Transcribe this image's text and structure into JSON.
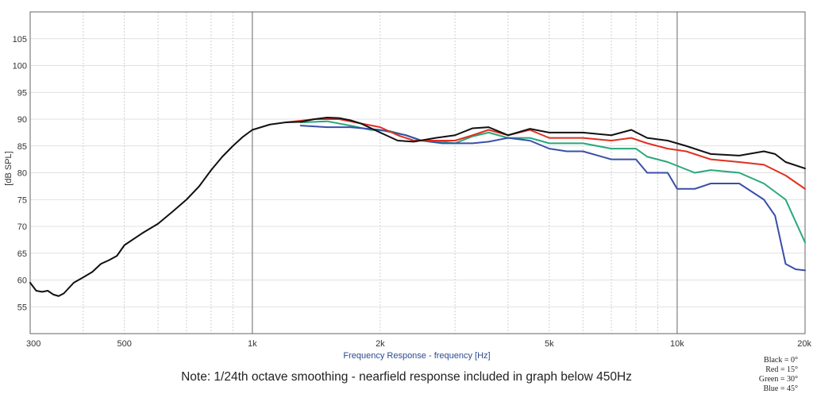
{
  "chart_data": {
    "type": "line",
    "x_scale": "log",
    "xlim": [
      300,
      20000
    ],
    "ylim": [
      50,
      110
    ],
    "grid": true,
    "xlabel": "Frequency Response - frequency [Hz]",
    "ylabel": "[dB SPL]",
    "x_ticks": [
      {
        "value": 300,
        "label": "300"
      },
      {
        "value": 500,
        "label": "500"
      },
      {
        "value": 1000,
        "label": "1k"
      },
      {
        "value": 2000,
        "label": "2k"
      },
      {
        "value": 5000,
        "label": "5k"
      },
      {
        "value": 10000,
        "label": "10k"
      },
      {
        "value": 20000,
        "label": "20k"
      }
    ],
    "y_ticks": [
      55,
      60,
      65,
      70,
      75,
      80,
      85,
      90,
      95,
      100,
      105
    ],
    "note": "Note: 1/24th octave smoothing - nearfield response included in graph below 450Hz",
    "legend_position": "bottom-right",
    "legend": [
      {
        "label": "Black =  0°",
        "color": "#111111"
      },
      {
        "label": "Red =  15°",
        "color": "#e03020"
      },
      {
        "label": "Green =  30°",
        "color": "#27a87a"
      },
      {
        "label": "Blue =  45°",
        "color": "#3a4fa8"
      }
    ],
    "series": [
      {
        "color": "#27a87a",
        "points": [
          [
            1300,
            89.4
          ],
          [
            1500,
            89.6
          ],
          [
            1700,
            88.8
          ],
          [
            1900,
            88.0
          ],
          [
            2100,
            87.8
          ],
          [
            2300,
            87.0
          ],
          [
            2500,
            86.0
          ],
          [
            2800,
            85.8
          ],
          [
            3000,
            85.5
          ],
          [
            3300,
            86.8
          ],
          [
            3600,
            87.5
          ],
          [
            4000,
            86.5
          ],
          [
            4500,
            86.5
          ],
          [
            5000,
            85.5
          ],
          [
            6000,
            85.5
          ],
          [
            7000,
            84.5
          ],
          [
            8000,
            84.5
          ],
          [
            8500,
            83.0
          ],
          [
            9500,
            82.0
          ],
          [
            11000,
            80.0
          ],
          [
            12000,
            80.5
          ],
          [
            14000,
            80.0
          ],
          [
            16000,
            78.0
          ],
          [
            18000,
            75.0
          ],
          [
            20000,
            67.0
          ]
        ]
      },
      {
        "color": "#3a4fa8",
        "points": [
          [
            1300,
            88.8
          ],
          [
            1500,
            88.5
          ],
          [
            1700,
            88.5
          ],
          [
            2000,
            88.0
          ],
          [
            2300,
            87.0
          ],
          [
            2500,
            86.0
          ],
          [
            2800,
            85.5
          ],
          [
            3000,
            85.5
          ],
          [
            3300,
            85.5
          ],
          [
            3600,
            85.8
          ],
          [
            4000,
            86.5
          ],
          [
            4500,
            86.0
          ],
          [
            5000,
            84.5
          ],
          [
            5500,
            84.0
          ],
          [
            6000,
            84.0
          ],
          [
            7000,
            82.5
          ],
          [
            8000,
            82.5
          ],
          [
            8500,
            80.0
          ],
          [
            9500,
            80.0
          ],
          [
            10000,
            77.0
          ],
          [
            11000,
            77.0
          ],
          [
            12000,
            78.0
          ],
          [
            14000,
            78.0
          ],
          [
            16000,
            75.0
          ],
          [
            17000,
            72.0
          ],
          [
            18000,
            63.0
          ],
          [
            19000,
            62.0
          ],
          [
            20000,
            61.8
          ]
        ]
      },
      {
        "color": "#e03020",
        "points": [
          [
            1200,
            89.4
          ],
          [
            1400,
            90.0
          ],
          [
            1600,
            90.0
          ],
          [
            1800,
            89.2
          ],
          [
            2000,
            88.5
          ],
          [
            2200,
            87.0
          ],
          [
            2400,
            86.0
          ],
          [
            2700,
            86.0
          ],
          [
            3000,
            86.0
          ],
          [
            3300,
            87.0
          ],
          [
            3600,
            88.0
          ],
          [
            4000,
            87.0
          ],
          [
            4500,
            88.0
          ],
          [
            5000,
            86.5
          ],
          [
            6000,
            86.5
          ],
          [
            7000,
            86.0
          ],
          [
            7800,
            86.5
          ],
          [
            8500,
            85.5
          ],
          [
            9500,
            84.5
          ],
          [
            10500,
            84.0
          ],
          [
            12000,
            82.5
          ],
          [
            14000,
            82.0
          ],
          [
            16000,
            81.5
          ],
          [
            18000,
            79.5
          ],
          [
            20000,
            77.0
          ]
        ]
      },
      {
        "color": "#111111",
        "points": [
          [
            300,
            59.5
          ],
          [
            310,
            58.0
          ],
          [
            320,
            57.8
          ],
          [
            330,
            58.0
          ],
          [
            340,
            57.3
          ],
          [
            350,
            57.0
          ],
          [
            360,
            57.5
          ],
          [
            380,
            59.5
          ],
          [
            400,
            60.5
          ],
          [
            420,
            61.5
          ],
          [
            440,
            63.0
          ],
          [
            460,
            63.7
          ],
          [
            480,
            64.5
          ],
          [
            500,
            66.5
          ],
          [
            550,
            68.7
          ],
          [
            600,
            70.5
          ],
          [
            650,
            72.8
          ],
          [
            700,
            75.0
          ],
          [
            750,
            77.5
          ],
          [
            800,
            80.5
          ],
          [
            850,
            83.0
          ],
          [
            900,
            85.0
          ],
          [
            950,
            86.7
          ],
          [
            1000,
            88.0
          ],
          [
            1100,
            89.0
          ],
          [
            1200,
            89.4
          ],
          [
            1300,
            89.5
          ],
          [
            1400,
            90.0
          ],
          [
            1500,
            90.3
          ],
          [
            1600,
            90.2
          ],
          [
            1700,
            89.8
          ],
          [
            1800,
            89.2
          ],
          [
            2000,
            87.5
          ],
          [
            2200,
            86.0
          ],
          [
            2400,
            85.8
          ],
          [
            2700,
            86.5
          ],
          [
            3000,
            87.0
          ],
          [
            3300,
            88.3
          ],
          [
            3600,
            88.5
          ],
          [
            4000,
            87.0
          ],
          [
            4500,
            88.2
          ],
          [
            5000,
            87.5
          ],
          [
            6000,
            87.5
          ],
          [
            7000,
            87.0
          ],
          [
            7800,
            88.0
          ],
          [
            8500,
            86.5
          ],
          [
            9500,
            86.0
          ],
          [
            10500,
            85.0
          ],
          [
            12000,
            83.5
          ],
          [
            14000,
            83.2
          ],
          [
            16000,
            84.0
          ],
          [
            17000,
            83.5
          ],
          [
            18000,
            82.0
          ],
          [
            20000,
            80.8
          ]
        ]
      }
    ]
  }
}
